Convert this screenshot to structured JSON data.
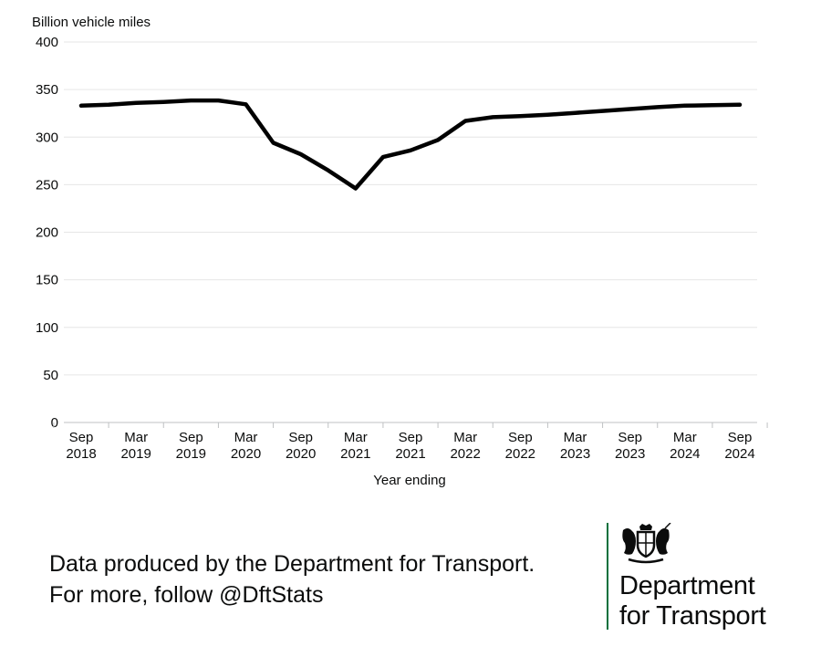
{
  "chart_data": {
    "type": "line",
    "ylabel": "Billion vehicle miles",
    "xlabel": "Year ending",
    "ylim": [
      0,
      400
    ],
    "yticks": [
      0,
      50,
      100,
      150,
      200,
      250,
      300,
      350,
      400
    ],
    "grid": true,
    "x_tick_labels": [
      [
        "Sep",
        "2018"
      ],
      [
        "Mar",
        "2019"
      ],
      [
        "Sep",
        "2019"
      ],
      [
        "Mar",
        "2020"
      ],
      [
        "Sep",
        "2020"
      ],
      [
        "Mar",
        "2021"
      ],
      [
        "Sep",
        "2021"
      ],
      [
        "Mar",
        "2022"
      ],
      [
        "Sep",
        "2022"
      ],
      [
        "Mar",
        "2023"
      ],
      [
        "Sep",
        "2023"
      ],
      [
        "Mar",
        "2024"
      ],
      [
        "Sep",
        "2024"
      ]
    ],
    "x": [
      "Sep 2018",
      "Dec 2018",
      "Mar 2019",
      "Jun 2019",
      "Sep 2019",
      "Dec 2019",
      "Mar 2020",
      "Jun 2020",
      "Sep 2020",
      "Dec 2020",
      "Mar 2021",
      "Jun 2021",
      "Sep 2021",
      "Dec 2021",
      "Mar 2022",
      "Jun 2022",
      "Sep 2022",
      "Dec 2022",
      "Mar 2023",
      "Jun 2023",
      "Sep 2023",
      "Dec 2023",
      "Mar 2024",
      "Jun 2024",
      "Sep 2024"
    ],
    "series": [
      {
        "values": [
          333,
          334,
          336,
          337,
          338.5,
          338.5,
          334.5,
          294,
          282,
          265,
          246,
          279,
          286,
          297,
          317,
          321,
          322,
          323.5,
          325.5,
          327.5,
          329.5,
          331.5,
          333,
          333.5,
          334
        ],
        "color": "#000000"
      }
    ]
  },
  "footer": {
    "line1": "Data produced by the Department for Transport.",
    "line2": "For more, follow @DftStats"
  },
  "logo": {
    "line1": "Department",
    "line2": "for Transport",
    "rule_color": "#00703c",
    "crest_icon": "royal-coat-of-arms-icon"
  }
}
